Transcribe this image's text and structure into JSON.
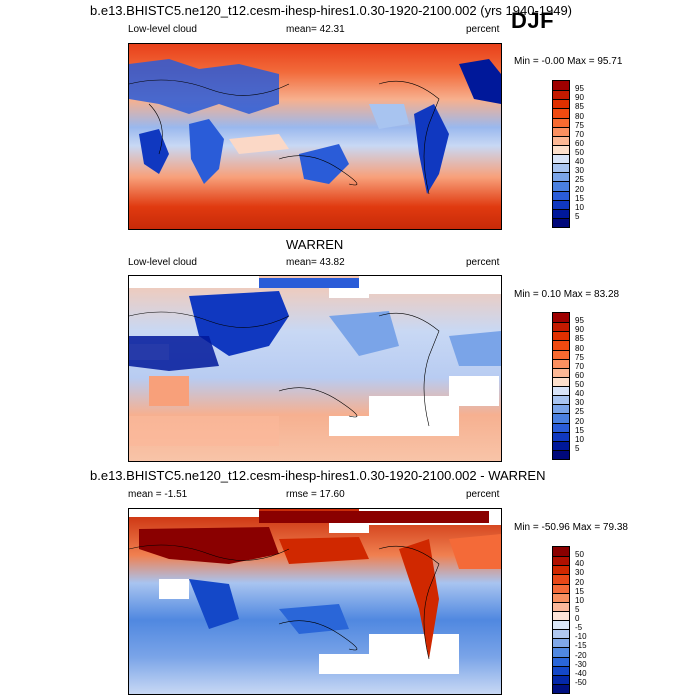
{
  "page_title": "b.e13.BHISTC5.ne120_t12.cesm-ihesp-hires1.0.30-1920-2100.002 (yrs 1940-1949)",
  "season": "DJF",
  "panels": [
    {
      "title": "",
      "left_label": "Low-level cloud",
      "stat_label": "mean=  42.31",
      "units": "percent",
      "minmax": "Min =  -0.00 Max =  95.71",
      "colorbar_labels": [
        "95",
        "90",
        "85",
        "80",
        "75",
        "70",
        "60",
        "50",
        "40",
        "30",
        "25",
        "20",
        "15",
        "10",
        "5"
      ],
      "colorbar_colors": [
        "#9e0000",
        "#c41a00",
        "#e03000",
        "#f04a10",
        "#f86a30",
        "#fc9060",
        "#fdb895",
        "#fde0cc",
        "#d8e4f8",
        "#a8c4f0",
        "#7aa4e8",
        "#4a80e0",
        "#2a5cd8",
        "#1038c0",
        "#00189a",
        "#00087a"
      ]
    },
    {
      "title": "WARREN",
      "left_label": "Low-level cloud",
      "stat_label": "mean=  43.82",
      "units": "percent",
      "minmax": "Min =   0.10 Max =  83.28",
      "colorbar_labels": [
        "95",
        "90",
        "85",
        "80",
        "75",
        "70",
        "60",
        "50",
        "40",
        "30",
        "25",
        "20",
        "15",
        "10",
        "5"
      ],
      "colorbar_colors": [
        "#9e0000",
        "#c41a00",
        "#e03000",
        "#f04a10",
        "#f86a30",
        "#fc9060",
        "#fdb895",
        "#fde0cc",
        "#d8e4f8",
        "#a8c4f0",
        "#7aa4e8",
        "#4a80e0",
        "#2a5cd8",
        "#1038c0",
        "#00189a",
        "#00087a"
      ]
    },
    {
      "title": "b.e13.BHISTC5.ne120_t12.cesm-ihesp-hires1.0.30-1920-2100.002 - WARREN",
      "left_label": "mean =  -1.51",
      "stat_label": "rmse =  17.60",
      "units": "percent",
      "minmax": "Min = -50.96 Max =  79.38",
      "colorbar_labels": [
        "50",
        "40",
        "30",
        "20",
        "15",
        "10",
        "5",
        "0",
        "-5",
        "-10",
        "-15",
        "-20",
        "-30",
        "-40",
        "-50"
      ],
      "colorbar_colors": [
        "#8a0000",
        "#b01000",
        "#d02800",
        "#e84818",
        "#f46a38",
        "#f89060",
        "#fbb89a",
        "#fde4d8",
        "#dce8f8",
        "#b0c8f0",
        "#80a8e8",
        "#5088e0",
        "#2a66d8",
        "#1448c8",
        "#0428a8",
        "#001080"
      ]
    }
  ]
}
